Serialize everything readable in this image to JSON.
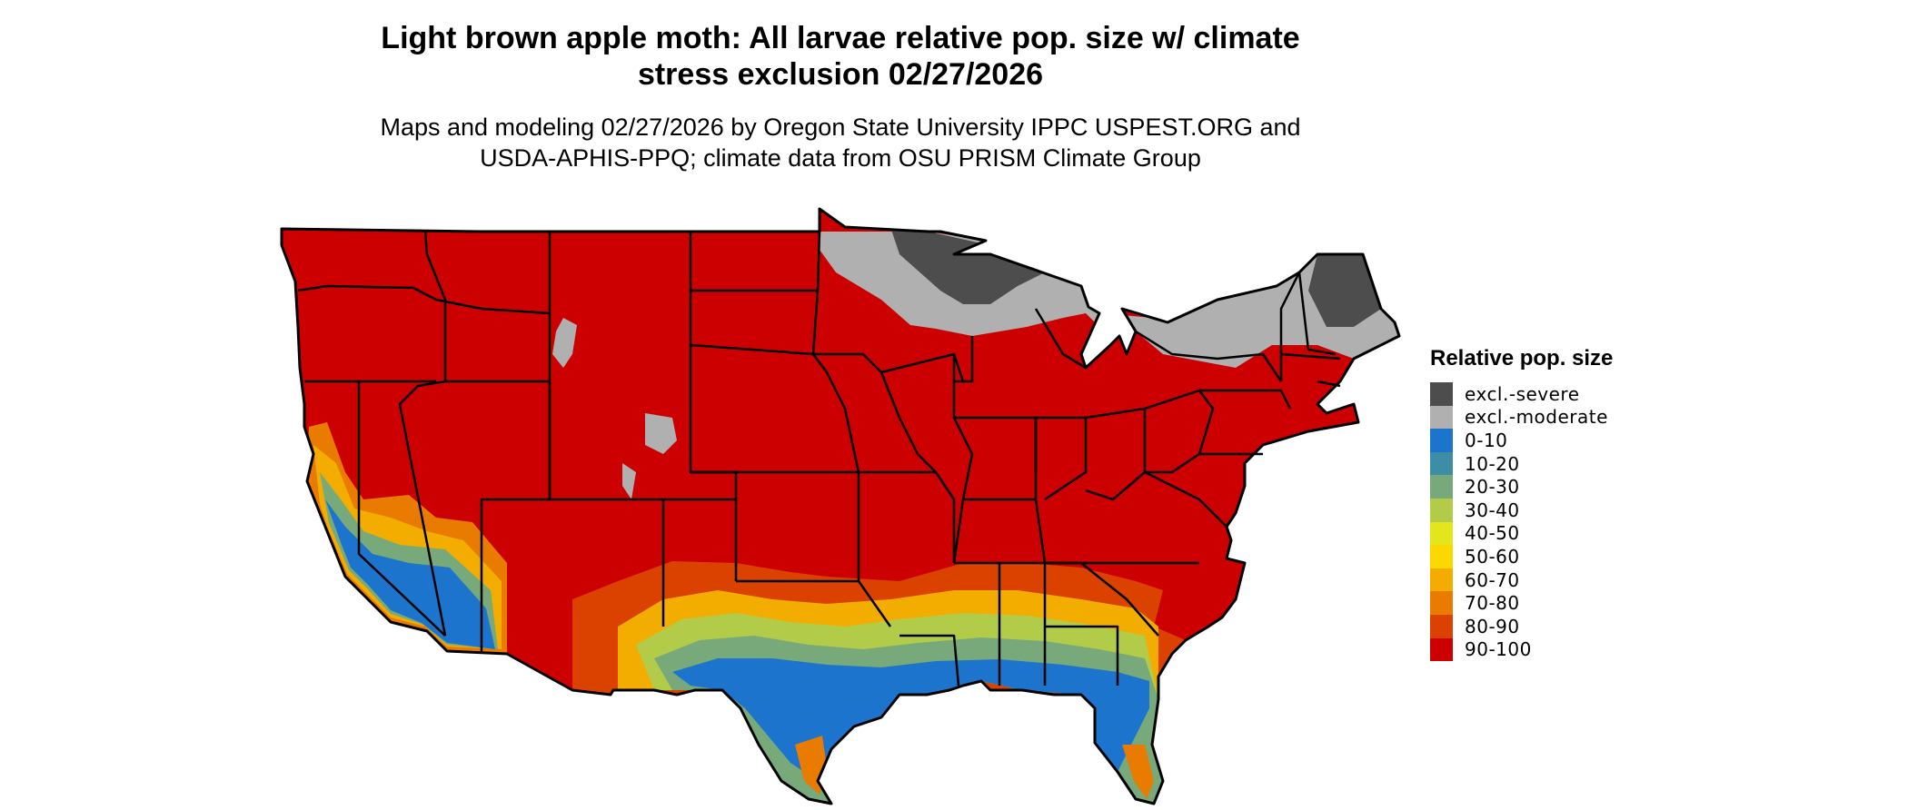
{
  "title": {
    "line1": "Light brown apple moth: All larvae relative pop. size w/ climate",
    "line2": "stress exclusion 02/27/2026"
  },
  "subtitle": {
    "line1": "Maps and modeling 02/27/2026 by Oregon State University IPPC USPEST.ORG and",
    "line2": "USDA-APHIS-PPQ; climate data from OSU PRISM Climate Group"
  },
  "legend": {
    "title": "Relative pop. size",
    "items": [
      {
        "label": "excl.-severe",
        "color": "#4d4d4d"
      },
      {
        "label": "excl.-moderate",
        "color": "#b0b0b0"
      },
      {
        "label": "0-10",
        "color": "#1c74cc"
      },
      {
        "label": "10-20",
        "color": "#3d8da6"
      },
      {
        "label": "20-30",
        "color": "#77a97a"
      },
      {
        "label": "30-40",
        "color": "#b2cc4a"
      },
      {
        "label": "40-50",
        "color": "#e4e61c"
      },
      {
        "label": "50-60",
        "color": "#fbd800"
      },
      {
        "label": "60-70",
        "color": "#f2ad00"
      },
      {
        "label": "70-80",
        "color": "#e87b00"
      },
      {
        "label": "80-90",
        "color": "#db4200"
      },
      {
        "label": "90-100",
        "color": "#cc0000"
      }
    ]
  }
}
